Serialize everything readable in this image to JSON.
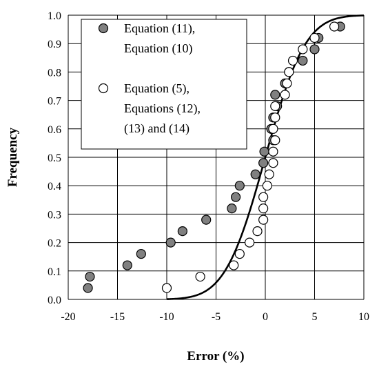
{
  "chart_data": {
    "type": "scatter",
    "title": "",
    "xlabel": "Error (%)",
    "ylabel": "Frequency",
    "xlim": [
      -20,
      10
    ],
    "ylim": [
      0,
      1
    ],
    "x_ticks": [
      "-20",
      "-15",
      "-10",
      "-5",
      "0",
      "5",
      "10"
    ],
    "y_ticks": [
      "0.0",
      "0.1",
      "0.2",
      "0.3",
      "0.4",
      "0.5",
      "0.6",
      "0.7",
      "0.8",
      "0.9",
      "1.0"
    ],
    "grid": true,
    "legend_position": "top-left",
    "legend": [
      {
        "lines": [
          "Equation (11),",
          "Equation (10)"
        ],
        "marker": "filled-circle"
      },
      {
        "lines": [
          "Equation (5),",
          "Equations (12),",
          "(13) and (14)"
        ],
        "marker": "open-circle"
      }
    ],
    "colors": {
      "filled": "#808080",
      "open": "#ffffff",
      "stroke": "#000000"
    },
    "series": [
      {
        "marker": "filled-circle",
        "points": [
          [
            -18,
            0.04
          ],
          [
            -17.8,
            0.08
          ],
          [
            -14,
            0.12
          ],
          [
            -12.6,
            0.16
          ],
          [
            -9.6,
            0.2
          ],
          [
            -8.4,
            0.24
          ],
          [
            -6,
            0.28
          ],
          [
            -3.4,
            0.32
          ],
          [
            -3,
            0.36
          ],
          [
            -2.6,
            0.4
          ],
          [
            -1,
            0.44
          ],
          [
            -0.2,
            0.48
          ],
          [
            -0.1,
            0.52
          ],
          [
            0.8,
            0.56
          ],
          [
            0.6,
            0.6
          ],
          [
            0.8,
            0.64
          ],
          [
            1.2,
            0.68
          ],
          [
            1,
            0.72
          ],
          [
            2,
            0.76
          ],
          [
            2.4,
            0.8
          ],
          [
            3.8,
            0.84
          ],
          [
            5,
            0.88
          ],
          [
            5.4,
            0.92
          ],
          [
            7.6,
            0.96
          ]
        ]
      },
      {
        "marker": "open-circle",
        "points": [
          [
            -10,
            0.04
          ],
          [
            -6.6,
            0.08
          ],
          [
            -3.2,
            0.12
          ],
          [
            -2.6,
            0.16
          ],
          [
            -1.6,
            0.2
          ],
          [
            -0.8,
            0.24
          ],
          [
            -0.2,
            0.28
          ],
          [
            -0.2,
            0.32
          ],
          [
            -0.2,
            0.36
          ],
          [
            0.2,
            0.4
          ],
          [
            0.4,
            0.44
          ],
          [
            0.8,
            0.48
          ],
          [
            0.8,
            0.52
          ],
          [
            1,
            0.56
          ],
          [
            0.8,
            0.6
          ],
          [
            1,
            0.64
          ],
          [
            1,
            0.68
          ],
          [
            2,
            0.72
          ],
          [
            2.2,
            0.76
          ],
          [
            2.4,
            0.8
          ],
          [
            2.8,
            0.84
          ],
          [
            3.8,
            0.88
          ],
          [
            5,
            0.92
          ],
          [
            7,
            0.96
          ]
        ]
      },
      {
        "type": "line",
        "curve": "normal-cdf",
        "mean": 0,
        "std": 3.2,
        "x_range": [
          -10,
          10
        ]
      }
    ]
  }
}
